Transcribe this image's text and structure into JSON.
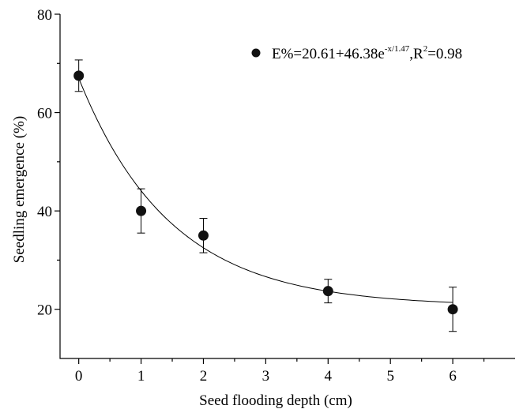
{
  "chart_data": {
    "type": "scatter",
    "xlabel": "Seed flooding depth (cm)",
    "ylabel": "Seedling emergence (%)",
    "xlim": [
      -0.3,
      7
    ],
    "ylim": [
      10,
      80
    ],
    "x_ticks": [
      0,
      1,
      2,
      3,
      4,
      5,
      6
    ],
    "y_ticks": [
      20,
      40,
      60,
      80
    ],
    "x_tick_labels": [
      "0",
      "1",
      "2",
      "3",
      "4",
      "5",
      "6"
    ],
    "y_tick_labels": [
      "20",
      "40",
      "60",
      "80"
    ],
    "legend_position": "top-right",
    "series": [
      {
        "x": [
          0,
          1,
          2,
          4,
          6
        ],
        "y": [
          67.5,
          40.0,
          35.0,
          23.7,
          20.0
        ],
        "error": [
          3.2,
          4.5,
          3.5,
          2.4,
          4.5
        ]
      }
    ],
    "fit": {
      "equation": {
        "base": "E%=20.61+46.38e",
        "exp": "-x/1.47",
        "mid": ",R",
        "exp2": "2",
        "tail": "=0.98"
      },
      "a": 20.61,
      "b": 46.38,
      "t": 1.47,
      "r2": 0.98
    },
    "grid": false
  }
}
